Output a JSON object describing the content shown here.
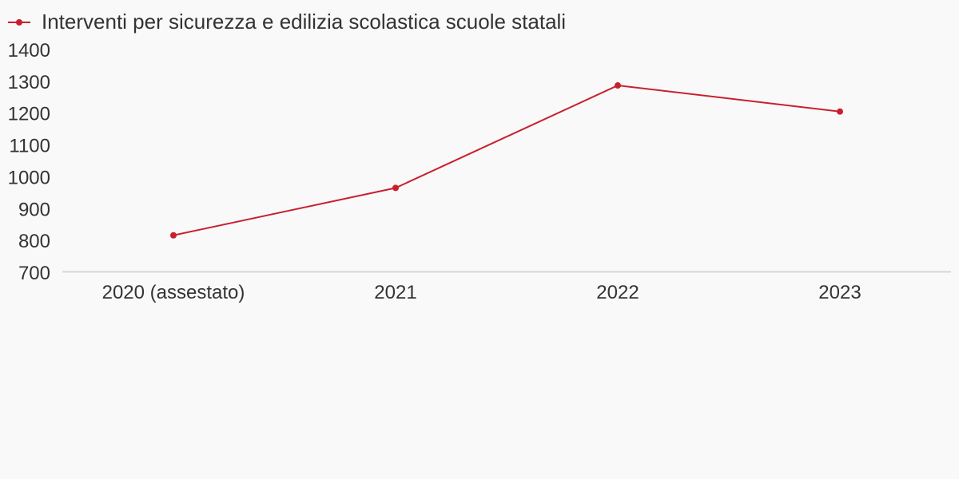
{
  "chart_data": {
    "type": "line",
    "categories": [
      "2020 (assestato)",
      "2021",
      "2022",
      "2023"
    ],
    "series": [
      {
        "name": "Interventi per sicurezza e edilizia scolastica scuole statali",
        "values": [
          816,
          965,
          1287,
          1205
        ],
        "color": "#c8202f"
      }
    ],
    "ylim": [
      700,
      1400
    ],
    "yticks": [
      1400,
      1300,
      1200,
      1100,
      1000,
      900,
      800,
      700
    ],
    "title": "",
    "xlabel": "",
    "ylabel": "",
    "legend_position": "top-left",
    "grid": false
  }
}
